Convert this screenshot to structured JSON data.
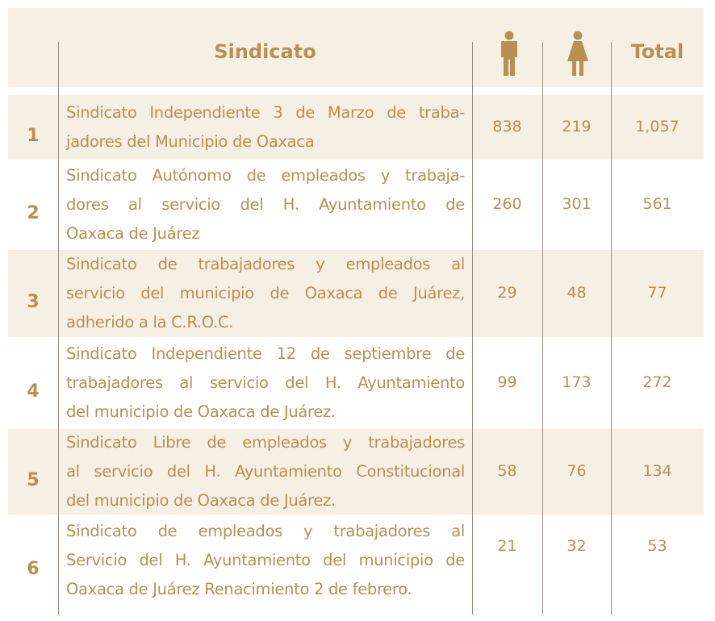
{
  "table": {
    "header": {
      "name": "Sindicato",
      "total": "Total"
    },
    "rows": [
      {
        "number": "1",
        "name_lines": [
          "Sindicato Independiente 3 de Marzo de traba-",
          "jadores del Municipio de Oaxaca"
        ],
        "men": 838,
        "women": 219,
        "total": "1,057"
      },
      {
        "number": "2",
        "name_lines": [
          "Sindicato Autónomo de empleados y trabaja-",
          "dores al servicio del H. Ayuntamiento de",
          "Oaxaca de Juárez"
        ],
        "men": 260,
        "women": 301,
        "total": 561
      },
      {
        "number": "3",
        "name_lines": [
          "Sindicato de trabajadores y empleados al",
          "servicio del municipio de Oaxaca de Juárez,",
          "adherido a la C.R.O.C."
        ],
        "men": 29,
        "women": 48,
        "total": 77
      },
      {
        "number": "4",
        "name_lines": [
          "Sindicato Independiente 12 de septiembre de",
          "trabajadores al servicio del H. Ayuntamiento",
          "del municipio de Oaxaca de Juárez."
        ],
        "men": 99,
        "women": 173,
        "total": 272
      },
      {
        "number": "5",
        "name_lines": [
          "Sindicato Libre de empleados y trabajadores",
          "al servicio del H. Ayuntamiento Constitucional",
          "del municipio de Oaxaca de Juárez."
        ],
        "men": 58,
        "women": 76,
        "total": 134
      },
      {
        "number": "6",
        "name_lines": [
          "Sindicato de empleados y trabajadores al",
          "Servicio del H. Ayuntamiento del municipio de",
          "Oaxaca de Juárez Renacimiento 2 de febrero."
        ],
        "men": 21,
        "women": 32,
        "total": 53
      }
    ]
  }
}
